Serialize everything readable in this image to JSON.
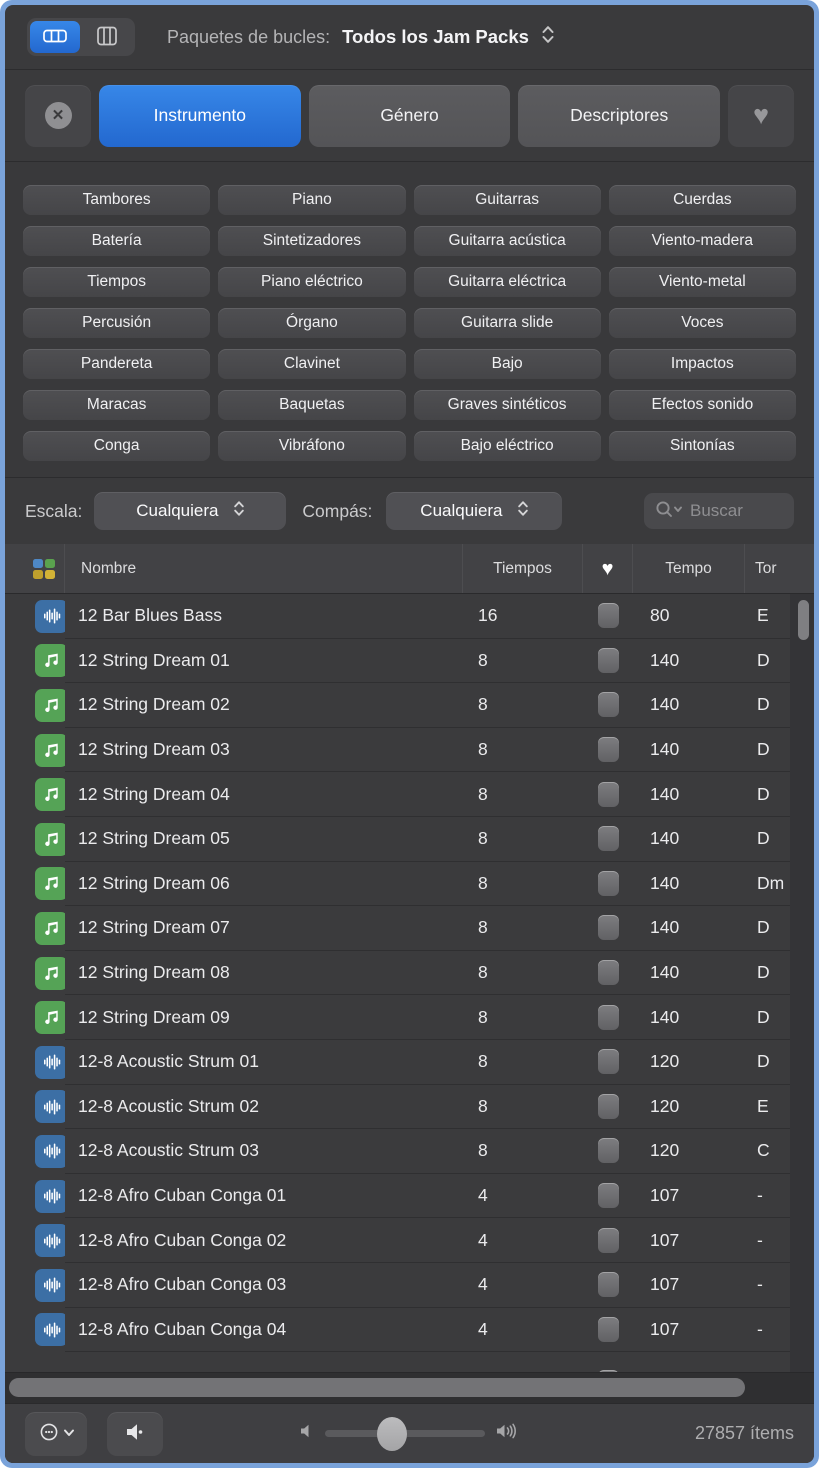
{
  "top_bar": {
    "loop_packs_label": "Paquetes de bucles:",
    "loop_packs_value": "Todos los Jam Packs"
  },
  "filter_tabs": [
    {
      "label": "Instrumento",
      "active": true
    },
    {
      "label": "Género",
      "active": false
    },
    {
      "label": "Descriptores",
      "active": false
    }
  ],
  "categories": [
    "Tambores",
    "Piano",
    "Guitarras",
    "Cuerdas",
    "Batería",
    "Sintetizadores",
    "Guitarra acústica",
    "Viento-madera",
    "Tiempos",
    "Piano eléctrico",
    "Guitarra eléctrica",
    "Viento-metal",
    "Percusión",
    "Órgano",
    "Guitarra slide",
    "Voces",
    "Pandereta",
    "Clavinet",
    "Bajo",
    "Impactos",
    "Maracas",
    "Baquetas",
    "Graves sintéticos",
    "Efectos sonido",
    "Conga",
    "Vibráfono",
    "Bajo eléctrico",
    "Sintonías"
  ],
  "scale_bar": {
    "escala_label": "Escala:",
    "escala_value": "Cualquiera",
    "compas_label": "Compás:",
    "compas_value": "Cualquiera",
    "search_placeholder": "Buscar"
  },
  "table": {
    "headers": {
      "nombre": "Nombre",
      "tiempos": "Tiempos",
      "fav": "♥",
      "tempo": "Tempo",
      "tono": "Tor"
    },
    "rows": [
      {
        "icon": "wave",
        "name": "12 Bar Blues Bass",
        "beats": "16",
        "tempo": "80",
        "key": "E"
      },
      {
        "icon": "note",
        "name": "12 String Dream 01",
        "beats": "8",
        "tempo": "140",
        "key": "D"
      },
      {
        "icon": "note",
        "name": "12 String Dream 02",
        "beats": "8",
        "tempo": "140",
        "key": "D"
      },
      {
        "icon": "note",
        "name": "12 String Dream 03",
        "beats": "8",
        "tempo": "140",
        "key": "D"
      },
      {
        "icon": "note",
        "name": "12 String Dream 04",
        "beats": "8",
        "tempo": "140",
        "key": "D"
      },
      {
        "icon": "note",
        "name": "12 String Dream 05",
        "beats": "8",
        "tempo": "140",
        "key": "D"
      },
      {
        "icon": "note",
        "name": "12 String Dream 06",
        "beats": "8",
        "tempo": "140",
        "key": "Dm"
      },
      {
        "icon": "note",
        "name": "12 String Dream 07",
        "beats": "8",
        "tempo": "140",
        "key": "D"
      },
      {
        "icon": "note",
        "name": "12 String Dream 08",
        "beats": "8",
        "tempo": "140",
        "key": "D"
      },
      {
        "icon": "note",
        "name": "12 String Dream 09",
        "beats": "8",
        "tempo": "140",
        "key": "D"
      },
      {
        "icon": "wave",
        "name": "12-8 Acoustic Strum 01",
        "beats": "8",
        "tempo": "120",
        "key": "D"
      },
      {
        "icon": "wave",
        "name": "12-8 Acoustic Strum 02",
        "beats": "8",
        "tempo": "120",
        "key": "E"
      },
      {
        "icon": "wave",
        "name": "12-8 Acoustic Strum 03",
        "beats": "8",
        "tempo": "120",
        "key": "C"
      },
      {
        "icon": "wave",
        "name": "12-8 Afro Cuban Conga 01",
        "beats": "4",
        "tempo": "107",
        "key": "-"
      },
      {
        "icon": "wave",
        "name": "12-8 Afro Cuban Conga 02",
        "beats": "4",
        "tempo": "107",
        "key": "-"
      },
      {
        "icon": "wave",
        "name": "12-8 Afro Cuban Conga 03",
        "beats": "4",
        "tempo": "107",
        "key": "-"
      },
      {
        "icon": "wave",
        "name": "12-8 Afro Cuban Conga 04",
        "beats": "4",
        "tempo": "107",
        "key": "-"
      }
    ]
  },
  "bottom_bar": {
    "items_count": "27857 ítems"
  },
  "colors": {
    "accent_blue": "#2d78dd",
    "frame_blue": "#7aa3da",
    "wave_icon_bg": "#3c6fa5",
    "note_icon_bg": "#55a356",
    "pack_blue": "#4e88c6",
    "pack_green": "#5aa24e",
    "pack_gold": "#bfa02d",
    "pack_yellow": "#d3b336"
  }
}
